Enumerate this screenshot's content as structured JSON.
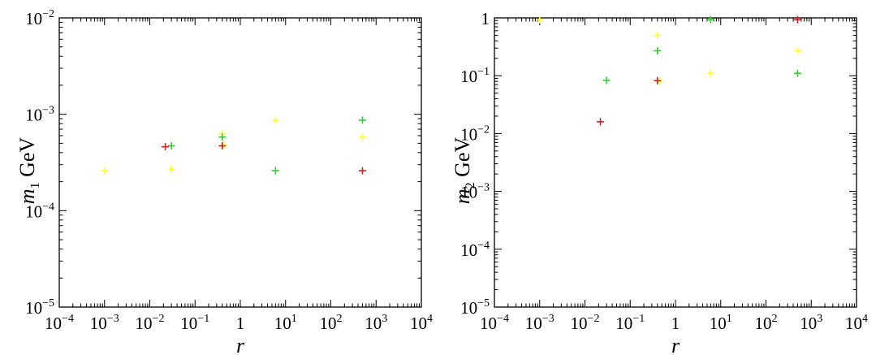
{
  "chart_data": [
    {
      "type": "scatter",
      "xlabel": "r",
      "ylabel": "m_1 GeV",
      "ylabel_main": "m",
      "ylabel_sub": "1",
      "ylabel_unit": " GeV",
      "xscale": "log",
      "yscale": "log",
      "xlim": [
        0.0001,
        10000
      ],
      "ylim": [
        1e-05,
        0.01
      ],
      "x_ticks": [
        {
          "base": "10",
          "exp": "−4"
        },
        {
          "base": "10",
          "exp": "−3"
        },
        {
          "base": "10",
          "exp": "−2"
        },
        {
          "base": "10",
          "exp": "−1"
        },
        {
          "base": "1",
          "exp": ""
        },
        {
          "base": "10",
          "exp": "1"
        },
        {
          "base": "10",
          "exp": "2"
        },
        {
          "base": "10",
          "exp": "3"
        },
        {
          "base": "10",
          "exp": "4"
        }
      ],
      "y_ticks": [
        {
          "base": "10",
          "exp": "−5"
        },
        {
          "base": "10",
          "exp": "−4"
        },
        {
          "base": "10",
          "exp": "−3"
        },
        {
          "base": "10",
          "exp": "−2"
        }
      ],
      "grid": false,
      "series": [
        {
          "color": "#ffff33",
          "points": [
            [
              0.001,
              0.00026
            ],
            [
              0.03,
              0.00027
            ],
            [
              0.4,
              0.00063
            ],
            [
              0.43,
              0.00048
            ],
            [
              6,
              0.00087
            ],
            [
              500,
              0.00058
            ]
          ]
        },
        {
          "color": "#33cc33",
          "points": [
            [
              0.03,
              0.00047
            ],
            [
              0.4,
              0.00058
            ],
            [
              6,
              0.00026
            ],
            [
              500,
              0.00087
            ]
          ]
        },
        {
          "color": "#cc2222",
          "points": [
            [
              0.022,
              0.00046
            ],
            [
              0.4,
              0.00047
            ],
            [
              500,
              0.00026
            ]
          ]
        }
      ]
    },
    {
      "type": "scatter",
      "xlabel": "r",
      "ylabel": "m_2 GeV",
      "ylabel_main": "m",
      "ylabel_sub": "2",
      "ylabel_unit": " GeV",
      "xscale": "log",
      "yscale": "log",
      "xlim": [
        0.0001,
        10000
      ],
      "ylim": [
        1e-05,
        1
      ],
      "x_ticks": [
        {
          "base": "10",
          "exp": "−4"
        },
        {
          "base": "10",
          "exp": "−3"
        },
        {
          "base": "10",
          "exp": "−2"
        },
        {
          "base": "10",
          "exp": "−1"
        },
        {
          "base": "1",
          "exp": ""
        },
        {
          "base": "10",
          "exp": "1"
        },
        {
          "base": "10",
          "exp": "2"
        },
        {
          "base": "10",
          "exp": "3"
        },
        {
          "base": "10",
          "exp": "4"
        }
      ],
      "y_ticks": [
        {
          "base": "10",
          "exp": "−5"
        },
        {
          "base": "10",
          "exp": "−4"
        },
        {
          "base": "10",
          "exp": "−3"
        },
        {
          "base": "10",
          "exp": "−2"
        },
        {
          "base": "10",
          "exp": "−1"
        },
        {
          "base": "1",
          "exp": ""
        }
      ],
      "grid": false,
      "series": [
        {
          "color": "#ffff33",
          "points": [
            [
              0.001,
              0.93
            ],
            [
              0.4,
              0.5
            ],
            [
              0.45,
              0.08
            ],
            [
              6,
              0.11
            ],
            [
              500,
              0.27
            ]
          ]
        },
        {
          "color": "#33cc33",
          "points": [
            [
              0.03,
              0.083
            ],
            [
              0.4,
              0.27
            ],
            [
              6,
              0.93
            ],
            [
              500,
              0.11
            ]
          ]
        },
        {
          "color": "#cc2222",
          "points": [
            [
              0.022,
              0.016
            ],
            [
              0.4,
              0.082
            ],
            [
              500,
              0.93
            ]
          ]
        }
      ]
    }
  ]
}
